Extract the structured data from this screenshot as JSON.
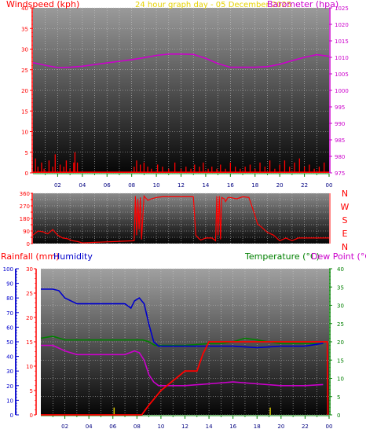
{
  "page_title": "24 hour graph day - 05 December 2025",
  "colors": {
    "wind": "#ff0000",
    "baro": "#cc00cc",
    "direction": "#ff0000",
    "rain": "#ff0000",
    "humidity": "#0000cc",
    "temperature": "#008000",
    "dewpoint": "#cc00cc",
    "gridline": "#c8c8c8"
  },
  "chart_data": [
    {
      "type": "line",
      "id": "wind_baro",
      "title": "24 hour graph day - 05 December 2025",
      "y_left_label": "Windspeed (kph)",
      "y_right_label": "Barometer (hpa)",
      "x_ticks": [
        "02",
        "04",
        "06",
        "08",
        "10",
        "12",
        "14",
        "16",
        "18",
        "20",
        "22",
        "00"
      ],
      "y_left": {
        "range": [
          0,
          40
        ],
        "ticks": [
          0,
          5,
          10,
          15,
          20,
          25,
          30,
          35,
          40
        ]
      },
      "y_right": {
        "range": [
          975,
          1025
        ],
        "ticks": [
          975,
          980,
          985,
          990,
          995,
          1000,
          1005,
          1010,
          1015,
          1020,
          1025
        ]
      },
      "grid": true,
      "series": [
        {
          "name": "Barometer",
          "axis": "right",
          "x": [
            0,
            1,
            2,
            3,
            4,
            5,
            6,
            7,
            8,
            9,
            10,
            11,
            12,
            13,
            14,
            15,
            16,
            17,
            18,
            19,
            20,
            21,
            22,
            23,
            24
          ],
          "y": [
            1008.4,
            1007.6,
            1006.9,
            1007.0,
            1007.3,
            1007.8,
            1008.3,
            1008.8,
            1009.3,
            1009.9,
            1010.6,
            1011.0,
            1011.0,
            1010.9,
            1009.7,
            1008.1,
            1007.0,
            1007.0,
            1007.0,
            1007.2,
            1007.9,
            1009.0,
            1010.0,
            1010.8,
            1010.3
          ]
        },
        {
          "name": "Windspeed",
          "axis": "left",
          "style": "spikes",
          "x": [
            0.2,
            0.4,
            0.7,
            0.9,
            1.3,
            1.6,
            1.8,
            2.2,
            2.5,
            2.7,
            3.0,
            3.3,
            3.4,
            3.6,
            8.2,
            8.4,
            8.7,
            9.0,
            9.3,
            9.6,
            10.1,
            10.5,
            11.0,
            11.5,
            12.0,
            12.4,
            12.8,
            13.1,
            13.5,
            13.8,
            14.2,
            14.5,
            14.9,
            15.2,
            15.6,
            16.0,
            16.4,
            16.8,
            17.2,
            17.6,
            18.0,
            18.4,
            18.8,
            19.2,
            19.6,
            20.0,
            20.4,
            20.8,
            21.2,
            21.6,
            22.0,
            22.4,
            22.8,
            23.2,
            23.6
          ],
          "y": [
            3.5,
            1.5,
            2.5,
            1.0,
            3.0,
            1.5,
            4.5,
            2.0,
            1.5,
            3.0,
            1.0,
            2.5,
            5.0,
            2.5,
            1.5,
            3.0,
            2.0,
            2.5,
            1.5,
            1.0,
            2.0,
            1.5,
            1.0,
            2.5,
            1.0,
            1.5,
            1.0,
            2.0,
            1.5,
            2.5,
            1.0,
            1.5,
            1.0,
            2.0,
            1.0,
            2.5,
            1.5,
            1.0,
            1.5,
            2.0,
            1.0,
            2.5,
            1.5,
            3.0,
            1.0,
            2.0,
            3.0,
            1.5,
            2.5,
            3.5,
            1.5,
            2.0,
            1.0,
            1.5,
            2.5
          ]
        }
      ]
    },
    {
      "type": "line",
      "id": "direction",
      "y_right_letters": [
        "N",
        "W",
        "S",
        "E",
        "N"
      ],
      "y_left": {
        "range": [
          0,
          360
        ],
        "ticks": [
          0,
          45,
          90,
          135,
          180,
          225,
          270,
          315,
          360
        ]
      },
      "grid": true,
      "series": [
        {
          "name": "Wind direction",
          "x": [
            0,
            0.4,
            0.8,
            1.2,
            1.6,
            2.0,
            2.4,
            2.8,
            3.2,
            3.6,
            4.0,
            8.2,
            8.3,
            8.4,
            8.5,
            8.6,
            8.7,
            8.8,
            9.0,
            9.3,
            9.6,
            10.0,
            10.5,
            11.0,
            11.5,
            12.0,
            12.5,
            13.0,
            13.2,
            13.4,
            13.6,
            14.0,
            14.5,
            14.8,
            14.9,
            15.0,
            15.1,
            15.2,
            15.3,
            15.5,
            15.6,
            15.8,
            16.0,
            16.5,
            17.0,
            17.5,
            18.0,
            18.2,
            18.5,
            19.0,
            19.5,
            20.0,
            20.5,
            21.0,
            21.5,
            22.0,
            22.5,
            23.0,
            23.5,
            24.0
          ],
          "y": [
            60,
            90,
            85,
            70,
            100,
            60,
            40,
            35,
            20,
            15,
            5,
            20,
            340,
            60,
            320,
            100,
            330,
            30,
            340,
            310,
            320,
            330,
            335,
            335,
            335,
            335,
            335,
            335,
            60,
            40,
            25,
            40,
            40,
            20,
            340,
            60,
            340,
            30,
            330,
            320,
            300,
            330,
            330,
            320,
            335,
            330,
            200,
            140,
            120,
            80,
            60,
            20,
            40,
            20,
            40,
            40,
            40,
            40,
            40,
            40
          ]
        }
      ]
    },
    {
      "type": "line",
      "id": "temp_hum_rain",
      "y_left_label": "Rainfall (mm)",
      "y_left2_label": "Humidity",
      "y_right_label": "Temperature (°C)",
      "y_right2_label": "Dew Point (°C)",
      "x_ticks": [
        "02",
        "04",
        "06",
        "08",
        "10",
        "12",
        "14",
        "16",
        "18",
        "20",
        "22",
        "00"
      ],
      "y_humidity": {
        "range": [
          0,
          100
        ],
        "ticks": [
          0,
          10,
          20,
          30,
          40,
          50,
          60,
          70,
          80,
          90,
          100
        ]
      },
      "y_rain": {
        "range": [
          0,
          30
        ],
        "ticks": [
          0,
          5,
          10,
          15,
          20,
          25,
          30
        ]
      },
      "y_temp": {
        "range": [
          0,
          40
        ],
        "ticks": [
          0,
          5,
          10,
          15,
          20,
          25,
          30,
          35,
          40
        ]
      },
      "grid": true,
      "series": [
        {
          "name": "Humidity",
          "axis": "humidity",
          "x": [
            0,
            1,
            1.5,
            2,
            3,
            4,
            5,
            6,
            7,
            7.5,
            7.8,
            8.2,
            8.6,
            9.0,
            9.4,
            9.8,
            10.5,
            12,
            14,
            16,
            18,
            20,
            22,
            23.5
          ],
          "y": [
            86,
            86,
            85,
            80,
            76,
            76,
            76,
            76,
            76,
            73,
            78,
            80,
            76,
            62,
            50,
            47,
            47,
            47,
            47,
            47,
            46,
            47,
            47,
            49
          ]
        },
        {
          "name": "Temperature",
          "axis": "temp",
          "x": [
            0,
            1,
            2,
            3,
            4,
            5,
            6,
            7,
            8,
            8.5,
            9,
            9.5,
            10,
            12,
            14,
            15,
            16,
            17,
            18,
            19,
            20,
            21,
            22,
            23.5
          ],
          "y": [
            21,
            21.5,
            20.5,
            20.5,
            20.5,
            20.5,
            20.5,
            20.5,
            20.5,
            20.5,
            20,
            19,
            19,
            19,
            19.5,
            19.5,
            20,
            21,
            20.5,
            20,
            19.5,
            19.5,
            19.5,
            19.5
          ]
        },
        {
          "name": "Dew Point",
          "axis": "temp",
          "x": [
            0,
            1,
            2,
            3,
            4,
            5,
            6,
            7,
            7.8,
            8.2,
            8.6,
            9.0,
            9.4,
            9.8,
            10.5,
            12,
            14,
            16,
            18,
            20,
            22,
            23.5
          ],
          "y": [
            19,
            19,
            17.5,
            16.5,
            16.5,
            16.5,
            16.5,
            16.5,
            17.5,
            17.0,
            15,
            11,
            9,
            8,
            8,
            8,
            8.5,
            9,
            8.5,
            8,
            8,
            8.3
          ]
        },
        {
          "name": "Rainfall",
          "axis": "rain",
          "x": [
            0,
            2,
            4,
            6,
            7,
            8,
            8.4,
            8.7,
            9,
            9.5,
            10,
            10.5,
            11,
            11.5,
            12,
            12.5,
            13,
            13.5,
            14,
            15,
            16,
            17,
            18,
            19,
            20,
            21,
            22,
            23,
            23.85,
            23.9
          ],
          "y": [
            0,
            0,
            0,
            0,
            0,
            0,
            0,
            1,
            2,
            3.5,
            5,
            6,
            7,
            8,
            9,
            9,
            9,
            12.5,
            15,
            15,
            15,
            15,
            15,
            15,
            15,
            15,
            15,
            15,
            15,
            0
          ]
        },
        {
          "name": "Rain rate",
          "axis": "rain",
          "style": "spikes",
          "x": [
            6.1,
            19.1
          ],
          "y": [
            1.5,
            1.5
          ]
        }
      ]
    }
  ]
}
